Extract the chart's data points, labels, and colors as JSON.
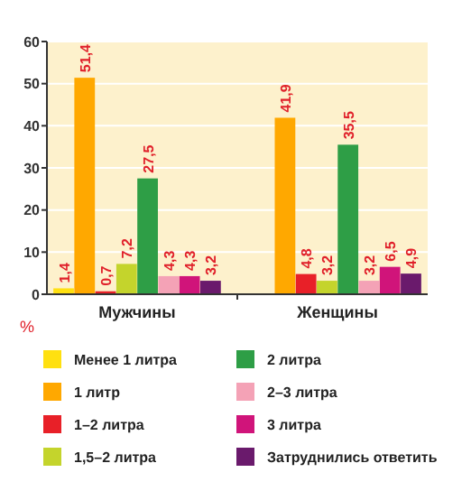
{
  "chart_data": {
    "type": "bar",
    "categories": [
      "Мужчины",
      "Женщины"
    ],
    "ylabel": "%",
    "ylim": [
      0,
      60
    ],
    "yticks": [
      0,
      10,
      20,
      30,
      40,
      50,
      60
    ],
    "grid": "y",
    "legend": "bottom",
    "series": [
      {
        "name": "Менее 1 литра",
        "color": "#ffe010",
        "values": [
          1.4,
          null
        ],
        "value_labels": [
          "1,4",
          null
        ]
      },
      {
        "name": "1 литр",
        "color": "#ffa800",
        "values": [
          51.4,
          41.9
        ],
        "value_labels": [
          "51,4",
          "41,9"
        ]
      },
      {
        "name": "1–2 литра",
        "color": "#e82028",
        "values": [
          0.7,
          4.8
        ],
        "value_labels": [
          "0,7",
          "4,8"
        ]
      },
      {
        "name": "1,5–2 литра",
        "color": "#c4d42c",
        "values": [
          7.2,
          3.2
        ],
        "value_labels": [
          "7,2",
          "3,2"
        ]
      },
      {
        "name": "2 литра",
        "color": "#2e9e46",
        "values": [
          27.5,
          35.5
        ],
        "value_labels": [
          "27,5",
          "35,5"
        ]
      },
      {
        "name": "2–3 литра",
        "color": "#f4a2b6",
        "values": [
          4.3,
          3.2
        ],
        "value_labels": [
          "4,3",
          "3,2"
        ]
      },
      {
        "name": "3 литра",
        "color": "#d0147a",
        "values": [
          4.3,
          6.5
        ],
        "value_labels": [
          "4,3",
          "6,5"
        ]
      },
      {
        "name": "Затруднились ответить",
        "color": "#6a1a6c",
        "values": [
          3.2,
          4.9
        ],
        "value_labels": [
          "3,2",
          "4,9"
        ]
      }
    ]
  }
}
